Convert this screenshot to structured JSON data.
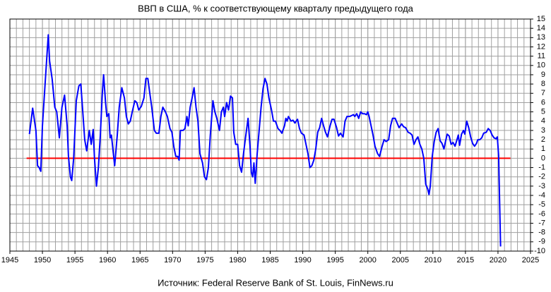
{
  "chart_data": {
    "type": "line",
    "title": "ВВП в США, % к соответствующему кварталу предыдущего года",
    "source": "Источник: Federal Reserve Bank of St. Louis, FinNews.ru",
    "xlim": [
      1945,
      2025
    ],
    "xticks": [
      1945,
      1950,
      1955,
      1960,
      1965,
      1970,
      1975,
      1980,
      1985,
      1990,
      1995,
      2000,
      2005,
      2010,
      2015,
      2020,
      2025
    ],
    "ylim": [
      -10,
      15
    ],
    "yticks": [
      -10,
      -9,
      -8,
      -7,
      -6,
      -5,
      -4,
      -3,
      -2,
      -1,
      0,
      1,
      2,
      3,
      4,
      5,
      6,
      7,
      8,
      9,
      10,
      11,
      12,
      13,
      14,
      15
    ],
    "grid": true,
    "grid_color": "#a0a0a0",
    "zero_line_color": "#ff0000",
    "negative_tick_color": "#ff0000",
    "series": [
      {
        "color": "#0000ff",
        "x": [
          1948.0,
          1948.5,
          1949.0,
          1949.25,
          1949.5,
          1949.75,
          1950.0,
          1950.5,
          1950.9,
          1951.1,
          1951.5,
          1951.9,
          1952.2,
          1952.6,
          1953.0,
          1953.4,
          1953.8,
          1954.0,
          1954.3,
          1954.5,
          1954.8,
          1955.2,
          1955.6,
          1955.9,
          1956.2,
          1956.5,
          1956.8,
          1957.2,
          1957.5,
          1957.8,
          1958.0,
          1958.3,
          1958.6,
          1958.9,
          1959.2,
          1959.4,
          1959.7,
          1959.9,
          1960.2,
          1960.4,
          1960.6,
          1960.9,
          1961.1,
          1961.5,
          1961.8,
          1962.2,
          1962.6,
          1962.9,
          1963.2,
          1963.5,
          1963.8,
          1964.2,
          1964.5,
          1964.8,
          1965.2,
          1965.6,
          1965.9,
          1966.2,
          1966.5,
          1966.8,
          1967.2,
          1967.5,
          1967.9,
          1968.2,
          1968.5,
          1968.9,
          1969.2,
          1969.6,
          1969.9,
          1970.2,
          1970.5,
          1970.8,
          1971.0,
          1971.2,
          1971.6,
          1971.9,
          1972.2,
          1972.4,
          1972.7,
          1973.0,
          1973.3,
          1973.6,
          1973.9,
          1974.2,
          1974.6,
          1974.9,
          1975.2,
          1975.5,
          1975.8,
          1976.2,
          1976.5,
          1976.8,
          1977.2,
          1977.5,
          1977.8,
          1978.0,
          1978.3,
          1978.6,
          1978.9,
          1979.2,
          1979.4,
          1979.7,
          1980.0,
          1980.3,
          1980.6,
          1980.9,
          1981.2,
          1981.6,
          1981.9,
          1982.1,
          1982.3,
          1982.5,
          1982.7,
          1983.0,
          1983.3,
          1983.6,
          1983.9,
          1984.2,
          1984.5,
          1984.8,
          1985.2,
          1985.5,
          1985.8,
          1986.2,
          1986.5,
          1986.8,
          1987.2,
          1987.4,
          1987.6,
          1987.8,
          1988.2,
          1988.5,
          1988.8,
          1989.2,
          1989.5,
          1989.8,
          1990.2,
          1990.5,
          1990.8,
          1991.1,
          1991.4,
          1991.7,
          1992.0,
          1992.3,
          1992.6,
          1992.9,
          1993.2,
          1993.5,
          1993.8,
          1994.2,
          1994.5,
          1994.8,
          1995.2,
          1995.5,
          1995.8,
          1996.2,
          1996.5,
          1996.8,
          1997.2,
          1997.5,
          1997.8,
          1998.0,
          1998.3,
          1998.6,
          1998.9,
          1999.2,
          1999.5,
          1999.8,
          2000.0,
          2000.2,
          2000.5,
          2000.8,
          2001.1,
          2001.5,
          2001.8,
          2002.2,
          2002.5,
          2002.8,
          2003.2,
          2003.5,
          2003.8,
          2004.2,
          2004.5,
          2004.8,
          2005.2,
          2005.5,
          2005.8,
          2006.2,
          2006.5,
          2006.8,
          2007.1,
          2007.4,
          2007.7,
          2008.0,
          2008.3,
          2008.6,
          2008.9,
          2009.2,
          2009.4,
          2009.6,
          2009.9,
          2010.2,
          2010.5,
          2010.8,
          2011.1,
          2011.4,
          2011.7,
          2011.9,
          2012.2,
          2012.5,
          2012.8,
          2013.1,
          2013.4,
          2013.7,
          2013.9,
          2014.1,
          2014.4,
          2014.7,
          2014.9,
          2015.2,
          2015.5,
          2015.8,
          2016.1,
          2016.4,
          2016.7,
          2016.9,
          2017.2,
          2017.5,
          2017.8,
          2018.2,
          2018.5,
          2018.8,
          2019.1,
          2019.4,
          2019.7,
          2019.9,
          2020.1,
          2020.4
        ],
        "values": [
          2.6,
          5.4,
          3.0,
          -0.8,
          -1.0,
          -1.4,
          3.5,
          9,
          13.3,
          10.5,
          8.5,
          5.5,
          5.0,
          2.2,
          5.5,
          6.8,
          3.5,
          0.2,
          -2.0,
          -2.4,
          0,
          6.2,
          7.8,
          8.0,
          5,
          2,
          0.8,
          3.0,
          1.5,
          3.1,
          0,
          -3.0,
          -1,
          2.5,
          7,
          9.0,
          6,
          4.5,
          4.8,
          2.2,
          2.5,
          0.5,
          -0.8,
          2.5,
          5.5,
          7.6,
          6.5,
          4.5,
          3.7,
          4.0,
          5.0,
          6.2,
          6.0,
          5.2,
          5.6,
          6.5,
          8.6,
          8.6,
          7.0,
          5.5,
          3.0,
          2.7,
          2.7,
          4.5,
          5.5,
          5.0,
          4.5,
          3.2,
          2.8,
          1.2,
          0.2,
          0.2,
          -0.2,
          3,
          3.0,
          3.2,
          4.5,
          3.5,
          5.5,
          6.5,
          7.6,
          5.5,
          4.0,
          0.5,
          -0.5,
          -2.0,
          -2.3,
          -1.0,
          2.5,
          6.2,
          5.0,
          4.3,
          3.0,
          5.0,
          5.5,
          4.5,
          6.0,
          5.2,
          6.7,
          6.5,
          2.8,
          1.5,
          1.5,
          -0.8,
          -1.5,
          0.5,
          2.2,
          4.3,
          1.3,
          -1.5,
          -2.0,
          -0.5,
          -2.7,
          0.5,
          3.0,
          5.5,
          7.5,
          8.6,
          8.0,
          6.5,
          5.2,
          4.0,
          4.0,
          3.2,
          3.0,
          2.7,
          3.5,
          4.3,
          4.0,
          4.5,
          4.0,
          4.1,
          3.8,
          4.2,
          3.2,
          2.7,
          2.5,
          1.5,
          0.5,
          -1.0,
          -0.8,
          -0.2,
          1.0,
          2.8,
          3.3,
          4.3,
          3.5,
          2.8,
          2.3,
          3.5,
          4.2,
          4.2,
          3.3,
          2.4,
          2.7,
          2.3,
          4.0,
          4.5,
          4.5,
          4.6,
          4.7,
          4.5,
          4.8,
          4.3,
          5.0,
          4.8,
          4.8,
          4.7,
          5.0,
          4.5,
          3.5,
          2.5,
          1.3,
          0.5,
          0.2,
          1.3,
          2.0,
          1.8,
          2.0,
          3.5,
          4.3,
          4.3,
          3.8,
          3.3,
          3.7,
          3.4,
          3.3,
          2.8,
          2.7,
          2.5,
          1.5,
          2.0,
          2.3,
          1.5,
          1.0,
          0,
          -2.8,
          -3.3,
          -3.9,
          -3.0,
          0.2,
          1.8,
          2.8,
          3.2,
          1.9,
          1.6,
          1.0,
          1.7,
          2.6,
          2.4,
          1.5,
          1.7,
          1.3,
          2.0,
          2.5,
          1.4,
          2.6,
          3.0,
          2.6,
          4.0,
          3.3,
          2.3,
          1.6,
          1.3,
          1.6,
          2.0,
          2.0,
          2.2,
          2.7,
          2.8,
          3.2,
          3.0,
          2.5,
          2.2,
          2.1,
          2.3,
          0.3,
          -9.5
        ]
      }
    ]
  }
}
